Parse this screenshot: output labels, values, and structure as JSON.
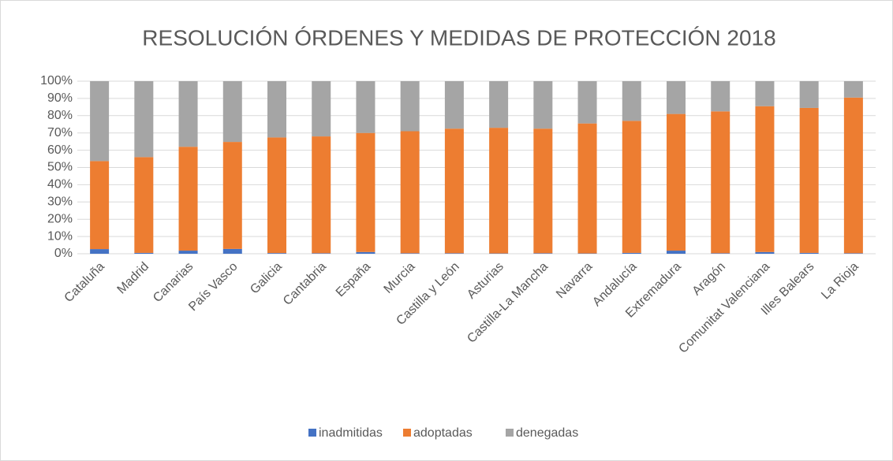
{
  "chart_data": {
    "type": "stacked_bar_100",
    "title": "RESOLUCIÓN ÓRDENES Y MEDIDAS DE PROTECCIÓN 2018",
    "categories": [
      "Cataluña",
      "Madrid",
      "Canarias",
      "País Vasco",
      "Galicia",
      "Cantabria",
      "España",
      "Murcia",
      "Castilla y León",
      "Asturias",
      "Castilla-La Mancha",
      "Navarra",
      "Andalucía",
      "Extremadura",
      "Aragón",
      "Comunitat Valenciana",
      "Illes Balears",
      "La Rioja"
    ],
    "series": [
      {
        "name": "inadmitidas",
        "color": "#4472c4",
        "values": [
          2.7,
          0.5,
          1.8,
          2.8,
          0.4,
          0.3,
          1,
          0.3,
          0.3,
          0.2,
          0.3,
          0.2,
          0.5,
          1.8,
          0.3,
          1,
          0.5,
          0.3
        ]
      },
      {
        "name": "adoptadas",
        "color": "#ed7d31",
        "values": [
          51,
          55.5,
          60.2,
          62,
          67,
          67.7,
          69,
          70.7,
          72.2,
          72.8,
          72.2,
          75.3,
          76.5,
          79.2,
          82.2,
          84.5,
          84,
          90.2
        ]
      },
      {
        "name": "denegadas",
        "color": "#a5a5a5",
        "values": [
          46.3,
          44,
          38,
          35.2,
          32.6,
          32,
          30,
          29,
          27.5,
          27,
          27.5,
          24.5,
          23,
          19,
          17.5,
          14.5,
          15.5,
          9.5
        ]
      }
    ],
    "ylim": [
      0,
      100
    ],
    "yticks": [
      {
        "value": 0,
        "label": "0%"
      },
      {
        "value": 10,
        "label": "10%"
      },
      {
        "value": 20,
        "label": "20%"
      },
      {
        "value": 30,
        "label": "30%"
      },
      {
        "value": 40,
        "label": "40%"
      },
      {
        "value": 50,
        "label": "50%"
      },
      {
        "value": 60,
        "label": "60%"
      },
      {
        "value": 70,
        "label": "70%"
      },
      {
        "value": 80,
        "label": "80%"
      },
      {
        "value": 90,
        "label": "90%"
      },
      {
        "value": 100,
        "label": "100%"
      }
    ],
    "grid": true,
    "legend": "bottom"
  }
}
